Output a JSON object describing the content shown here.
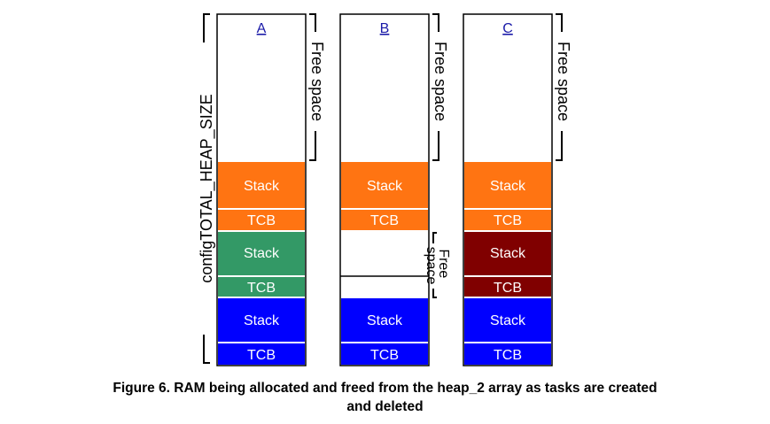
{
  "heap_label": "configTOTAL_HEAP_SIZE",
  "free_space_label": "Free space",
  "free_space_small_label": "Free space",
  "columns": [
    {
      "label": "A",
      "blocks": [
        {
          "text": "Stack",
          "color": "#FF7412"
        },
        {
          "text": "TCB",
          "color": "#FF7412"
        },
        {
          "text": "Stack",
          "color": "#339966"
        },
        {
          "text": "TCB",
          "color": "#339966"
        },
        {
          "text": "Stack",
          "color": "#0000FF"
        },
        {
          "text": "TCB",
          "color": "#0000FF"
        }
      ]
    },
    {
      "label": "B",
      "blocks": [
        {
          "text": "Stack",
          "color": "#FF7412"
        },
        {
          "text": "TCB",
          "color": "#FF7412"
        },
        {
          "text": "",
          "color": "#FFFFFF"
        },
        {
          "text": "",
          "color": "#FFFFFF"
        },
        {
          "text": "Stack",
          "color": "#0000FF"
        },
        {
          "text": "TCB",
          "color": "#0000FF"
        }
      ]
    },
    {
      "label": "C",
      "blocks": [
        {
          "text": "Stack",
          "color": "#FF7412"
        },
        {
          "text": "TCB",
          "color": "#FF7412"
        },
        {
          "text": "Stack",
          "color": "#800000"
        },
        {
          "text": "TCB",
          "color": "#800000"
        },
        {
          "text": "Stack",
          "color": "#0000FF"
        },
        {
          "text": "TCB",
          "color": "#0000FF"
        }
      ]
    }
  ],
  "caption": {
    "line1": "Figure 6.  RAM being allocated and freed from the heap_2 array as tasks are created",
    "line2": "and deleted"
  }
}
